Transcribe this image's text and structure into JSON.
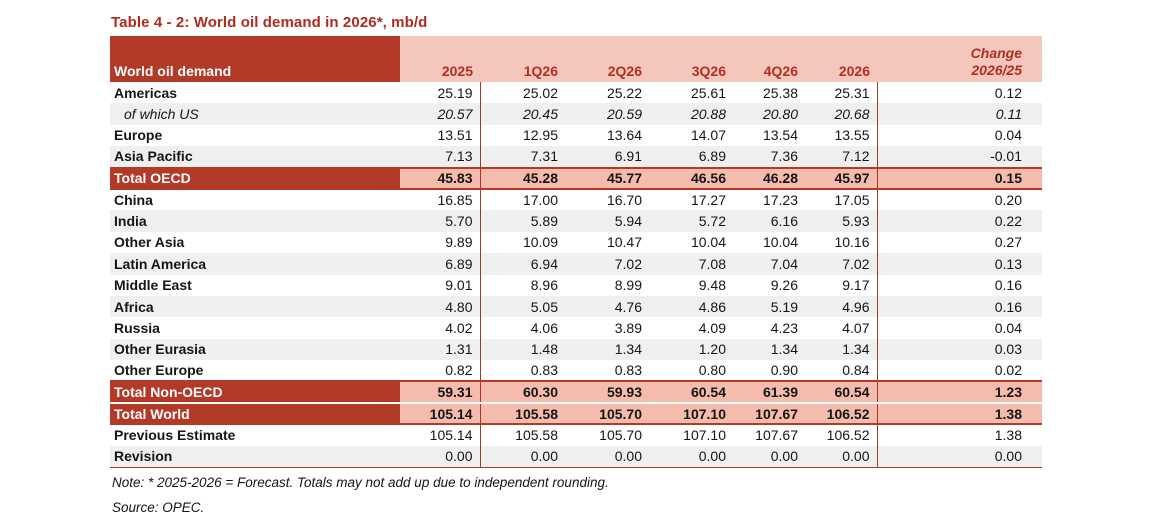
{
  "title": "Table 4 - 2: World oil demand in 2026*, mb/d",
  "colors": {
    "accent_dark_red": "#B23A28",
    "header_pink": "#F5C6BC",
    "total_row_pink": "#F5BCAD",
    "stripe_gray": "#EFEFEF",
    "header_text_red": "#B0301F"
  },
  "table": {
    "header": {
      "label": "World oil demand",
      "columns": [
        "2025",
        "1Q26",
        "2Q26",
        "3Q26",
        "4Q26",
        "2026"
      ],
      "change_line1": "Change",
      "change_line2": "2026/25"
    },
    "rows": [
      {
        "label": "Americas",
        "style": "normal",
        "shade": false,
        "values": [
          "25.19",
          "25.02",
          "25.22",
          "25.61",
          "25.38",
          "25.31",
          "0.12"
        ]
      },
      {
        "label": "of which US",
        "style": "italic",
        "shade": true,
        "values": [
          "20.57",
          "20.45",
          "20.59",
          "20.88",
          "20.80",
          "20.68",
          "0.11"
        ]
      },
      {
        "label": "Europe",
        "style": "normal",
        "shade": false,
        "values": [
          "13.51",
          "12.95",
          "13.64",
          "14.07",
          "13.54",
          "13.55",
          "0.04"
        ]
      },
      {
        "label": "Asia Pacific",
        "style": "normal",
        "shade": true,
        "values": [
          "7.13",
          "7.31",
          "6.91",
          "6.89",
          "7.36",
          "7.12",
          "-0.01"
        ]
      },
      {
        "label": "Total OECD",
        "style": "total",
        "shade": false,
        "values": [
          "45.83",
          "45.28",
          "45.77",
          "46.56",
          "46.28",
          "45.97",
          "0.15"
        ]
      },
      {
        "label": "China",
        "style": "normal",
        "shade": false,
        "values": [
          "16.85",
          "17.00",
          "16.70",
          "17.27",
          "17.23",
          "17.05",
          "0.20"
        ]
      },
      {
        "label": "India",
        "style": "normal",
        "shade": true,
        "values": [
          "5.70",
          "5.89",
          "5.94",
          "5.72",
          "6.16",
          "5.93",
          "0.22"
        ]
      },
      {
        "label": "Other Asia",
        "style": "normal",
        "shade": false,
        "values": [
          "9.89",
          "10.09",
          "10.47",
          "10.04",
          "10.04",
          "10.16",
          "0.27"
        ]
      },
      {
        "label": "Latin America",
        "style": "normal",
        "shade": true,
        "values": [
          "6.89",
          "6.94",
          "7.02",
          "7.08",
          "7.04",
          "7.02",
          "0.13"
        ]
      },
      {
        "label": "Middle East",
        "style": "normal",
        "shade": false,
        "values": [
          "9.01",
          "8.96",
          "8.99",
          "9.48",
          "9.26",
          "9.17",
          "0.16"
        ]
      },
      {
        "label": "Africa",
        "style": "normal",
        "shade": true,
        "values": [
          "4.80",
          "5.05",
          "4.76",
          "4.86",
          "5.19",
          "4.96",
          "0.16"
        ]
      },
      {
        "label": "Russia",
        "style": "normal",
        "shade": false,
        "values": [
          "4.02",
          "4.06",
          "3.89",
          "4.09",
          "4.23",
          "4.07",
          "0.04"
        ]
      },
      {
        "label": "Other Eurasia",
        "style": "normal",
        "shade": true,
        "values": [
          "1.31",
          "1.48",
          "1.34",
          "1.20",
          "1.34",
          "1.34",
          "0.03"
        ]
      },
      {
        "label": "Other Europe",
        "style": "normal",
        "shade": false,
        "values": [
          "0.82",
          "0.83",
          "0.83",
          "0.80",
          "0.90",
          "0.84",
          "0.02"
        ]
      },
      {
        "label": "Total Non-OECD",
        "style": "total",
        "shade": false,
        "values": [
          "59.31",
          "60.30",
          "59.93",
          "60.54",
          "61.39",
          "60.54",
          "1.23"
        ]
      },
      {
        "label": "Total World",
        "style": "total",
        "shade": false,
        "values": [
          "105.14",
          "105.58",
          "105.70",
          "107.10",
          "107.67",
          "106.52",
          "1.38"
        ]
      },
      {
        "label": "Previous Estimate",
        "style": "plain",
        "shade": false,
        "values": [
          "105.14",
          "105.58",
          "105.70",
          "107.10",
          "107.67",
          "106.52",
          "1.38"
        ]
      },
      {
        "label": "Revision",
        "style": "plain",
        "shade": true,
        "values": [
          "0.00",
          "0.00",
          "0.00",
          "0.00",
          "0.00",
          "0.00",
          "0.00"
        ]
      }
    ]
  },
  "notes": {
    "note": "Note: * 2025-2026 = Forecast. Totals may not add up due to independent rounding.",
    "source": "Source: OPEC."
  }
}
